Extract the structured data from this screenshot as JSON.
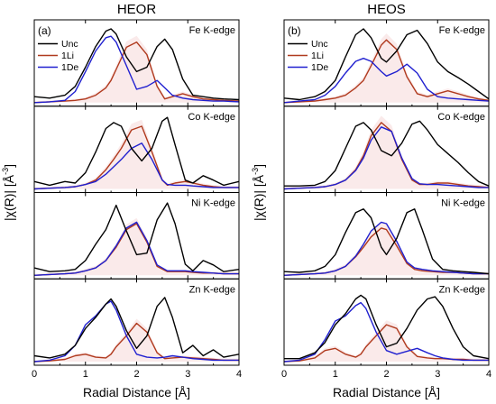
{
  "colors": {
    "Unc": "#000000",
    "1Li": "#b03a1e",
    "1De": "#2020d0",
    "shade": "#f2c4c4"
  },
  "chart_data": [
    {
      "type": "line",
      "title": "HEOR",
      "panel_label": "(a)",
      "xlabel": "Radial Distance [Å]",
      "ylabel": "|χ(R)| [Å",
      "ylabel_sup": "-3",
      "ylabel_close": "]",
      "xlim": [
        0,
        4
      ],
      "xticks": [
        0,
        1,
        2,
        3,
        4
      ],
      "legend": [
        "Unc",
        "1Li",
        "1De"
      ],
      "legend_position": "top-left",
      "subpanels": [
        {
          "edge_label": "Fe K-edge",
          "x": [
            0,
            0.3,
            0.6,
            0.8,
            1.0,
            1.2,
            1.4,
            1.5,
            1.6,
            1.8,
            2.0,
            2.2,
            2.4,
            2.55,
            2.7,
            2.9,
            3.1,
            3.3,
            3.5,
            3.7,
            4.0
          ],
          "Unc": [
            0.08,
            0.06,
            0.1,
            0.22,
            0.48,
            0.76,
            0.97,
            1.0,
            0.93,
            0.62,
            0.42,
            0.48,
            0.76,
            0.86,
            0.72,
            0.32,
            0.1,
            0.08,
            0.06,
            0.05,
            0.04
          ],
          "1Li": [
            0.0,
            0.01,
            0.02,
            0.03,
            0.05,
            0.1,
            0.2,
            0.3,
            0.45,
            0.75,
            0.82,
            0.65,
            0.22,
            0.05,
            0.08,
            0.12,
            0.08,
            0.05,
            0.04,
            0.03,
            0.02
          ],
          "1De": [
            0.0,
            0.01,
            0.03,
            0.15,
            0.42,
            0.7,
            0.88,
            0.9,
            0.82,
            0.5,
            0.18,
            0.22,
            0.3,
            0.2,
            0.1,
            0.06,
            0.04,
            0.03,
            0.02,
            0.02,
            0.01
          ]
        },
        {
          "edge_label": "Co K-edge",
          "x": [
            0,
            0.3,
            0.6,
            0.8,
            1.0,
            1.2,
            1.4,
            1.55,
            1.7,
            1.9,
            2.1,
            2.3,
            2.5,
            2.6,
            2.75,
            2.95,
            3.1,
            3.3,
            3.5,
            3.7,
            4.0
          ],
          "Unc": [
            0.1,
            0.05,
            0.1,
            0.08,
            0.22,
            0.5,
            0.82,
            0.9,
            0.85,
            0.55,
            0.38,
            0.55,
            0.92,
            0.97,
            0.6,
            0.12,
            0.08,
            0.18,
            0.12,
            0.05,
            0.1
          ],
          "1Li": [
            0.0,
            0.01,
            0.02,
            0.03,
            0.06,
            0.12,
            0.26,
            0.4,
            0.55,
            0.8,
            0.85,
            0.5,
            0.12,
            0.05,
            0.08,
            0.1,
            0.08,
            0.05,
            0.03,
            0.02,
            0.02
          ],
          "1De": [
            0.0,
            0.01,
            0.02,
            0.03,
            0.06,
            0.1,
            0.2,
            0.3,
            0.4,
            0.55,
            0.62,
            0.4,
            0.12,
            0.06,
            0.05,
            0.05,
            0.04,
            0.03,
            0.02,
            0.02,
            0.02
          ]
        },
        {
          "edge_label": "Ni K-edge",
          "x": [
            0,
            0.3,
            0.6,
            0.8,
            1.0,
            1.2,
            1.4,
            1.6,
            1.8,
            2.0,
            2.2,
            2.4,
            2.6,
            2.75,
            2.95,
            3.1,
            3.3,
            3.5,
            3.7,
            4.0
          ],
          "Unc": [
            0.1,
            0.05,
            0.06,
            0.08,
            0.2,
            0.42,
            0.62,
            0.95,
            0.6,
            0.28,
            0.3,
            0.75,
            0.98,
            0.7,
            0.15,
            0.06,
            0.2,
            0.14,
            0.05,
            0.08
          ],
          "1Li": [
            0.0,
            0.01,
            0.02,
            0.03,
            0.06,
            0.1,
            0.2,
            0.38,
            0.62,
            0.7,
            0.45,
            0.12,
            0.05,
            0.05,
            0.05,
            0.04,
            0.03,
            0.03,
            0.02,
            0.02
          ],
          "1De": [
            0.0,
            0.01,
            0.02,
            0.03,
            0.06,
            0.1,
            0.2,
            0.4,
            0.64,
            0.72,
            0.47,
            0.14,
            0.06,
            0.06,
            0.06,
            0.05,
            0.04,
            0.03,
            0.02,
            0.02
          ]
        },
        {
          "edge_label": "Zn K-edge",
          "x": [
            0,
            0.3,
            0.6,
            0.8,
            1.0,
            1.2,
            1.4,
            1.5,
            1.6,
            1.8,
            2.0,
            2.2,
            2.4,
            2.55,
            2.7,
            2.9,
            3.1,
            3.3,
            3.5,
            3.7,
            4.0
          ],
          "Unc": [
            0.08,
            0.05,
            0.1,
            0.22,
            0.45,
            0.6,
            0.78,
            0.85,
            0.75,
            0.42,
            0.18,
            0.35,
            0.75,
            0.87,
            0.6,
            0.12,
            0.22,
            0.08,
            0.16,
            0.06,
            0.1
          ],
          "1Li": [
            0.0,
            0.01,
            0.03,
            0.08,
            0.1,
            0.06,
            0.05,
            0.1,
            0.2,
            0.35,
            0.52,
            0.4,
            0.12,
            0.04,
            0.05,
            0.06,
            0.05,
            0.04,
            0.03,
            0.02,
            0.02
          ],
          "1De": [
            0.0,
            0.02,
            0.08,
            0.22,
            0.5,
            0.62,
            0.78,
            0.82,
            0.7,
            0.35,
            0.1,
            0.06,
            0.05,
            0.06,
            0.08,
            0.06,
            0.04,
            0.03,
            0.02,
            0.02,
            0.02
          ]
        }
      ]
    },
    {
      "type": "line",
      "title": "HEOS",
      "panel_label": "(b)",
      "xlabel": "Radial Distance [Å]",
      "ylabel": "|χ(R)| [Å",
      "ylabel_sup": "-3",
      "ylabel_close": "]",
      "xlim": [
        0,
        4
      ],
      "xticks": [
        0,
        1,
        2,
        3,
        4
      ],
      "legend": [
        "Unc",
        "1Li",
        "1De"
      ],
      "legend_position": "top-left",
      "subpanels": [
        {
          "edge_label": "Fe K-edge",
          "x": [
            0,
            0.3,
            0.6,
            0.8,
            1.0,
            1.2,
            1.4,
            1.55,
            1.7,
            1.9,
            2.0,
            2.2,
            2.4,
            2.6,
            2.8,
            3.0,
            3.2,
            3.4,
            3.6,
            3.8,
            4.0
          ],
          "Unc": [
            0.06,
            0.04,
            0.08,
            0.15,
            0.3,
            0.62,
            0.92,
            1.0,
            0.88,
            0.6,
            0.55,
            0.7,
            0.92,
            0.98,
            0.8,
            0.55,
            0.42,
            0.34,
            0.25,
            0.15,
            0.05
          ],
          "1Li": [
            0.0,
            0.01,
            0.02,
            0.04,
            0.06,
            0.1,
            0.2,
            0.3,
            0.5,
            0.78,
            0.85,
            0.72,
            0.35,
            0.12,
            0.08,
            0.12,
            0.16,
            0.12,
            0.08,
            0.05,
            0.03
          ],
          "1De": [
            0.0,
            0.02,
            0.04,
            0.1,
            0.22,
            0.4,
            0.56,
            0.6,
            0.56,
            0.42,
            0.36,
            0.42,
            0.52,
            0.4,
            0.18,
            0.08,
            0.06,
            0.05,
            0.04,
            0.03,
            0.02
          ]
        },
        {
          "edge_label": "Co K-edge",
          "x": [
            0,
            0.3,
            0.6,
            0.8,
            1.0,
            1.2,
            1.4,
            1.55,
            1.7,
            1.9,
            2.1,
            2.3,
            2.5,
            2.65,
            2.8,
            3.0,
            3.2,
            3.4,
            3.6,
            3.8,
            4.0
          ],
          "Unc": [
            0.04,
            0.04,
            0.05,
            0.1,
            0.25,
            0.55,
            0.85,
            0.9,
            0.8,
            0.52,
            0.45,
            0.62,
            0.88,
            0.92,
            0.8,
            0.6,
            0.48,
            0.36,
            0.22,
            0.1,
            0.04
          ],
          "1Li": [
            0.0,
            0.01,
            0.02,
            0.03,
            0.06,
            0.12,
            0.26,
            0.45,
            0.72,
            0.9,
            0.78,
            0.4,
            0.12,
            0.06,
            0.06,
            0.08,
            0.08,
            0.06,
            0.04,
            0.03,
            0.02
          ],
          "1De": [
            0.0,
            0.01,
            0.02,
            0.03,
            0.06,
            0.12,
            0.25,
            0.42,
            0.66,
            0.84,
            0.78,
            0.42,
            0.14,
            0.07,
            0.06,
            0.06,
            0.05,
            0.04,
            0.03,
            0.02,
            0.02
          ]
        },
        {
          "edge_label": "Ni K-edge",
          "x": [
            0,
            0.3,
            0.6,
            0.8,
            1.0,
            1.2,
            1.4,
            1.55,
            1.7,
            1.9,
            2.0,
            2.2,
            2.4,
            2.55,
            2.7,
            2.9,
            3.1,
            3.3,
            3.5,
            3.7,
            4.0
          ],
          "Unc": [
            0.05,
            0.04,
            0.06,
            0.12,
            0.28,
            0.58,
            0.85,
            0.9,
            0.78,
            0.38,
            0.28,
            0.5,
            0.85,
            0.9,
            0.62,
            0.22,
            0.08,
            0.06,
            0.05,
            0.04,
            0.02
          ],
          "1Li": [
            0.0,
            0.01,
            0.02,
            0.03,
            0.06,
            0.12,
            0.25,
            0.38,
            0.52,
            0.64,
            0.62,
            0.4,
            0.16,
            0.08,
            0.06,
            0.05,
            0.04,
            0.04,
            0.03,
            0.02,
            0.02
          ],
          "1De": [
            0.0,
            0.01,
            0.02,
            0.03,
            0.06,
            0.12,
            0.26,
            0.42,
            0.6,
            0.72,
            0.7,
            0.46,
            0.18,
            0.1,
            0.08,
            0.06,
            0.05,
            0.04,
            0.03,
            0.02,
            0.02
          ]
        },
        {
          "edge_label": "Zn K-edge",
          "x": [
            0,
            0.3,
            0.6,
            0.8,
            1.0,
            1.2,
            1.4,
            1.5,
            1.6,
            1.8,
            2.0,
            2.2,
            2.4,
            2.6,
            2.8,
            2.95,
            3.1,
            3.3,
            3.5,
            3.7,
            4.0
          ],
          "Unc": [
            0.04,
            0.04,
            0.12,
            0.26,
            0.5,
            0.65,
            0.85,
            0.9,
            0.85,
            0.5,
            0.2,
            0.25,
            0.45,
            0.7,
            0.85,
            0.88,
            0.75,
            0.45,
            0.2,
            0.08,
            0.04
          ],
          "1Li": [
            0.0,
            0.01,
            0.05,
            0.15,
            0.18,
            0.1,
            0.06,
            0.1,
            0.2,
            0.35,
            0.5,
            0.45,
            0.2,
            0.07,
            0.05,
            0.04,
            0.04,
            0.03,
            0.03,
            0.02,
            0.02
          ],
          "1De": [
            0.0,
            0.02,
            0.1,
            0.3,
            0.55,
            0.62,
            0.76,
            0.8,
            0.72,
            0.4,
            0.15,
            0.1,
            0.14,
            0.18,
            0.12,
            0.08,
            0.05,
            0.03,
            0.02,
            0.02,
            0.02
          ]
        }
      ]
    }
  ]
}
